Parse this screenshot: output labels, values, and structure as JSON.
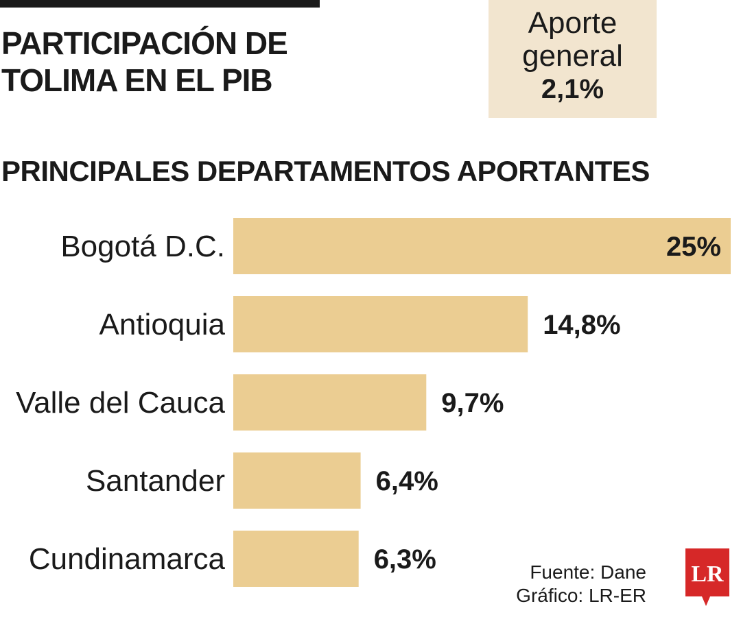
{
  "header": {
    "title_line1": "PARTICIPACIÓN DE",
    "title_line2": "TOLIMA EN EL PIB"
  },
  "aporte": {
    "label_line1": "Aporte",
    "label_line2": "general",
    "value": "2,1%"
  },
  "section_title": "PRINCIPALES DEPARTAMENTOS APORTANTES",
  "chart_data": {
    "type": "bar",
    "orientation": "horizontal",
    "categories": [
      "Bogotá D.C.",
      "Antioquia",
      "Valle del Cauca",
      "Santander",
      "Cundinamarca"
    ],
    "values": [
      25,
      14.8,
      9.7,
      6.4,
      6.3
    ],
    "value_labels": [
      "25%",
      "14,8%",
      "9,7%",
      "6,4%",
      "6,3%"
    ],
    "title": "PRINCIPALES DEPARTAMENTOS APORTANTES",
    "xlabel": "",
    "ylabel": "",
    "xlim": [
      0,
      25
    ],
    "grid": false,
    "legend": "none",
    "bar_color": "#ebcd92"
  },
  "footer": {
    "source_line1": "Fuente: Dane",
    "source_line2": "Gráfico: LR-ER",
    "logo_text": "LR"
  },
  "colors": {
    "bar": "#ebcd92",
    "aporte_box": "#f2e5cf",
    "logo": "#d62828",
    "text": "#1a1a1a"
  }
}
